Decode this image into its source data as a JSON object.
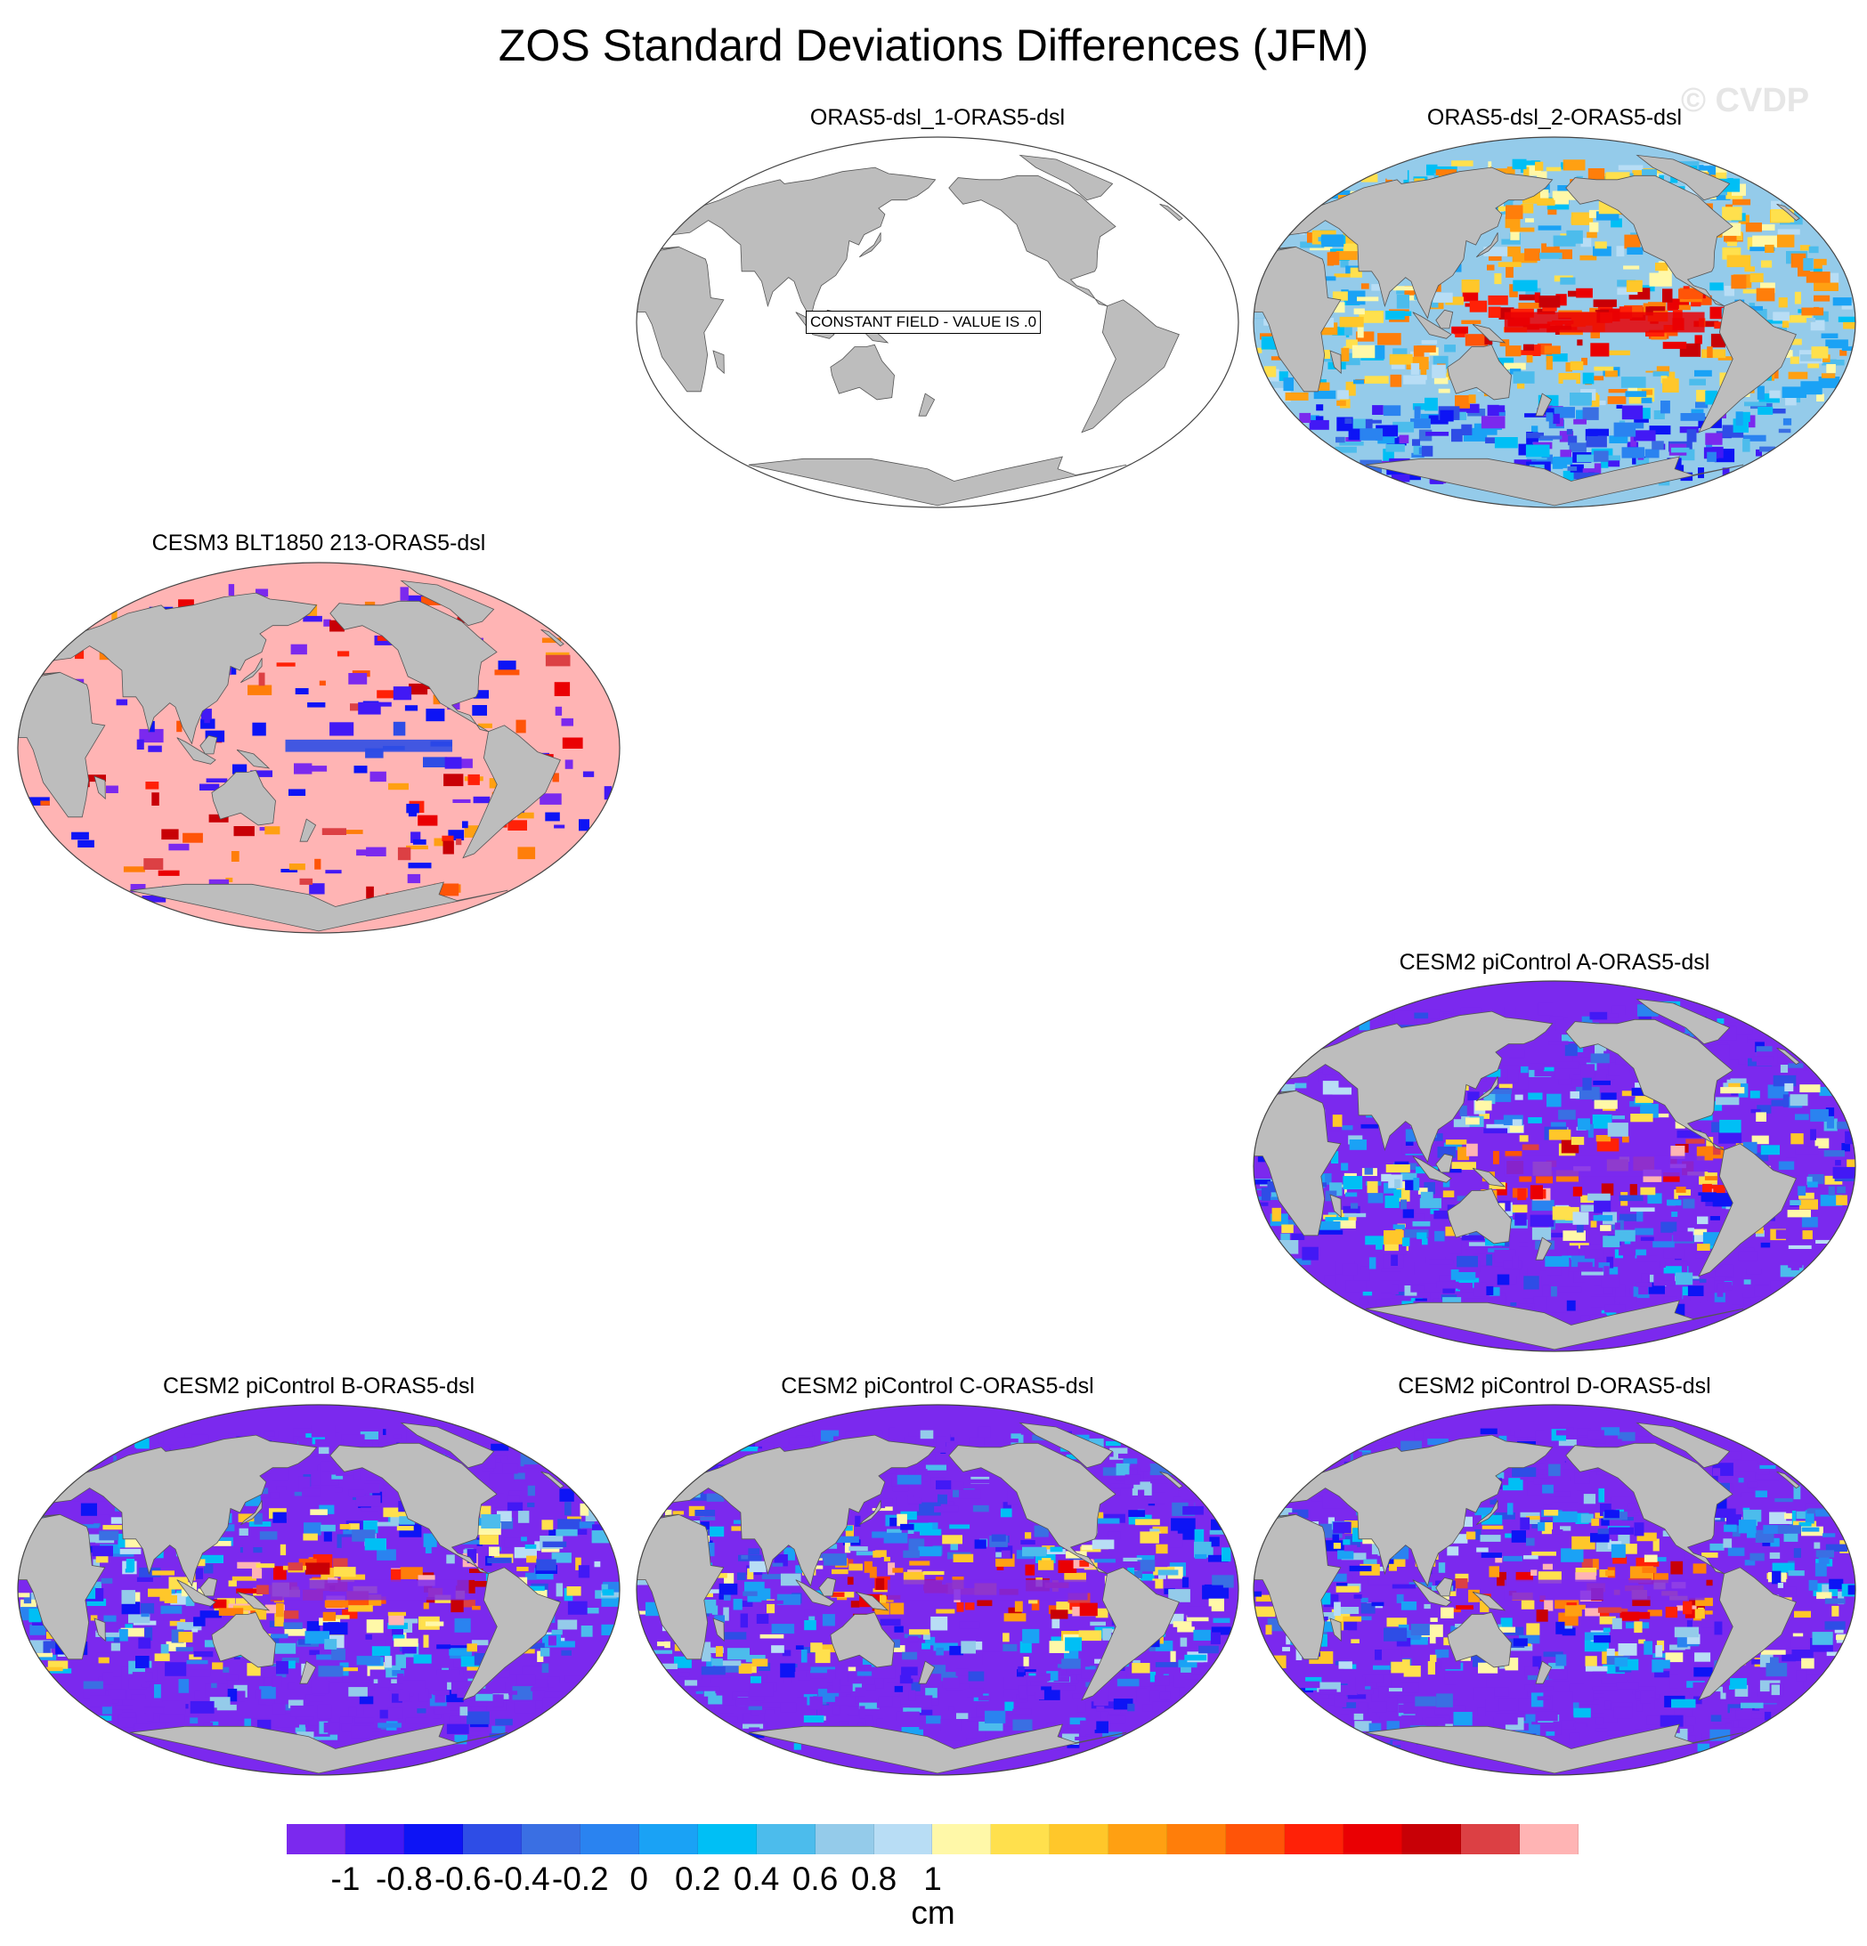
{
  "title": "ZOS Standard Deviations Differences (JFM)",
  "watermark": "© CVDP",
  "panels": [
    {
      "label": "ORAS5-dsl_1-ORAS5-dsl",
      "pattern": "constant"
    },
    {
      "label": "ORAS5-dsl_2-ORAS5-dsl",
      "pattern": "mixed"
    },
    {
      "label": "CESM3 BLT1850 213-ORAS5-dsl",
      "pattern": "positive"
    },
    {
      "label": "CESM2 piControl A-ORAS5-dsl",
      "pattern": "negative"
    },
    {
      "label": "CESM2 piControl B-ORAS5-dsl",
      "pattern": "negative"
    },
    {
      "label": "CESM2 piControl C-ORAS5-dsl",
      "pattern": "negative"
    },
    {
      "label": "CESM2 piControl D-ORAS5-dsl",
      "pattern": "negative"
    }
  ],
  "constant_field_text": "CONSTANT FIELD - VALUE IS .0",
  "colorbar": {
    "units": "cm",
    "tick_labels": [
      "-1",
      "-0.8",
      "-0.6",
      "-0.4",
      "-0.2",
      "0",
      "0.2",
      "0.4",
      "0.6",
      "0.8",
      "1"
    ],
    "colors": [
      "#7b29ee",
      "#4219f5",
      "#0d14f5",
      "#2e4de6",
      "#3a6fe3",
      "#2a83f0",
      "#1aa2f5",
      "#00bff5",
      "#4cbcec",
      "#94cbea",
      "#b8ddf5",
      "#fff8a8",
      "#ffe04d",
      "#ffc72a",
      "#ffa012",
      "#ff7e0a",
      "#ff5408",
      "#ff2107",
      "#ea0003",
      "#c80006",
      "#dc4044",
      "#ffb4b4"
    ]
  },
  "land_color": "#bdbdbd"
}
